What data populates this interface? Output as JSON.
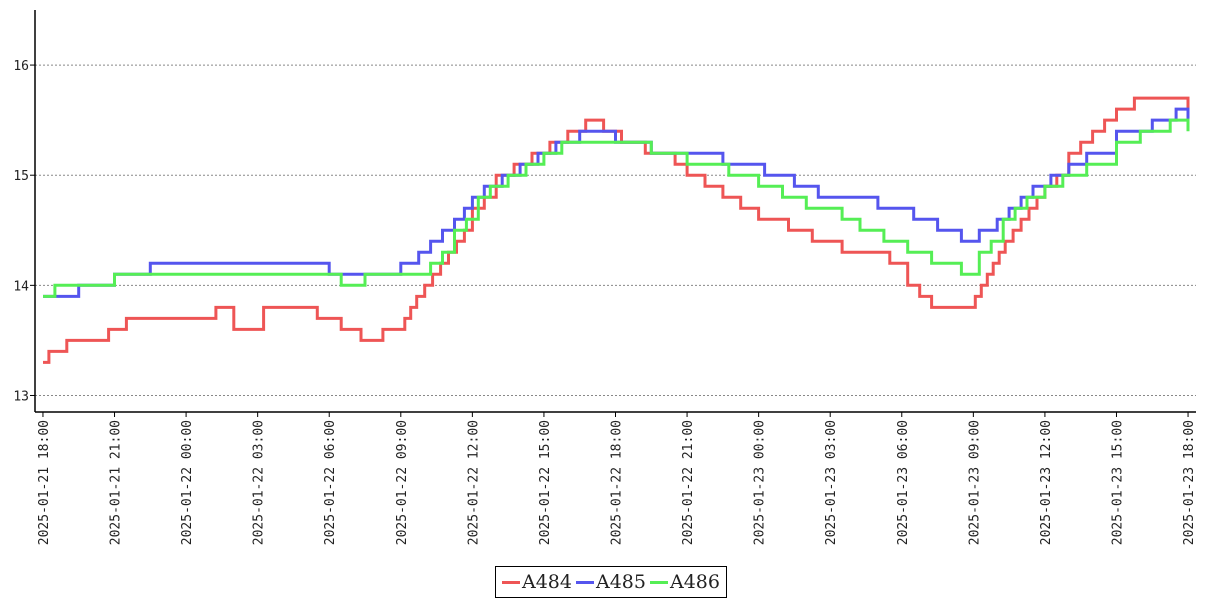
{
  "chart_data": {
    "type": "line",
    "title": "",
    "xlabel": "",
    "ylabel": "",
    "ylim": [
      12.85,
      16.5
    ],
    "xlim": [
      "2025-01-21 17:40",
      "2025-01-23 18:20"
    ],
    "y_ticks": [
      13,
      14,
      15,
      16
    ],
    "x_ticks": [
      "2025-01-21 18:00",
      "2025-01-21 21:00",
      "2025-01-22 00:00",
      "2025-01-22 03:00",
      "2025-01-22 06:00",
      "2025-01-22 09:00",
      "2025-01-22 12:00",
      "2025-01-22 15:00",
      "2025-01-22 18:00",
      "2025-01-22 21:00",
      "2025-01-23 00:00",
      "2025-01-23 03:00",
      "2025-01-23 06:00",
      "2025-01-23 09:00",
      "2025-01-23 12:00",
      "2025-01-23 15:00",
      "2025-01-23 18:00"
    ],
    "grid": {
      "y": true,
      "x": false,
      "style": "dotted"
    },
    "legend_placement": "bottom-center",
    "series": [
      {
        "name": "A484",
        "color": "#ee5555",
        "x": [
          "2025-01-21 18:00",
          "2025-01-21 18:15",
          "2025-01-21 18:30",
          "2025-01-21 19:00",
          "2025-01-21 19:45",
          "2025-01-21 20:45",
          "2025-01-21 21:30",
          "2025-01-21 22:00",
          "2025-01-22 01:00",
          "2025-01-22 01:15",
          "2025-01-22 02:00",
          "2025-01-22 03:15",
          "2025-01-22 05:30",
          "2025-01-22 06:30",
          "2025-01-22 07:20",
          "2025-01-22 08:15",
          "2025-01-22 08:40",
          "2025-01-22 09:10",
          "2025-01-22 09:25",
          "2025-01-22 09:40",
          "2025-01-22 10:00",
          "2025-01-22 10:20",
          "2025-01-22 10:40",
          "2025-01-22 11:00",
          "2025-01-22 11:20",
          "2025-01-22 11:40",
          "2025-01-22 12:00",
          "2025-01-22 12:30",
          "2025-01-22 13:00",
          "2025-01-22 13:45",
          "2025-01-22 14:30",
          "2025-01-22 15:15",
          "2025-01-22 16:00",
          "2025-01-22 16:45",
          "2025-01-22 17:30",
          "2025-01-22 18:15",
          "2025-01-22 19:15",
          "2025-01-22 20:30",
          "2025-01-22 21:00",
          "2025-01-22 21:45",
          "2025-01-22 22:30",
          "2025-01-22 23:15",
          "2025-01-23 00:00",
          "2025-01-23 01:15",
          "2025-01-23 02:15",
          "2025-01-23 03:30",
          "2025-01-23 05:30",
          "2025-01-23 06:15",
          "2025-01-23 06:45",
          "2025-01-23 07:15",
          "2025-01-23 08:45",
          "2025-01-23 09:05",
          "2025-01-23 09:20",
          "2025-01-23 09:35",
          "2025-01-23 09:50",
          "2025-01-23 10:05",
          "2025-01-23 10:20",
          "2025-01-23 10:40",
          "2025-01-23 11:00",
          "2025-01-23 11:20",
          "2025-01-23 11:40",
          "2025-01-23 12:00",
          "2025-01-23 12:30",
          "2025-01-23 13:00",
          "2025-01-23 13:30",
          "2025-01-23 14:00",
          "2025-01-23 14:30",
          "2025-01-23 15:00",
          "2025-01-23 15:45",
          "2025-01-23 17:45",
          "2025-01-23 18:00"
        ],
        "y": [
          13.3,
          13.4,
          13.4,
          13.5,
          13.5,
          13.6,
          13.7,
          13.7,
          13.7,
          13.8,
          13.6,
          13.8,
          13.7,
          13.6,
          13.5,
          13.6,
          13.6,
          13.7,
          13.8,
          13.9,
          14.0,
          14.1,
          14.2,
          14.3,
          14.4,
          14.5,
          14.7,
          14.8,
          15.0,
          15.1,
          15.2,
          15.3,
          15.4,
          15.5,
          15.4,
          15.3,
          15.2,
          15.1,
          15.0,
          14.9,
          14.8,
          14.7,
          14.6,
          14.5,
          14.4,
          14.3,
          14.2,
          14.0,
          13.9,
          13.8,
          13.8,
          13.9,
          14.0,
          14.1,
          14.2,
          14.3,
          14.4,
          14.5,
          14.6,
          14.7,
          14.8,
          14.9,
          15.0,
          15.2,
          15.3,
          15.4,
          15.5,
          15.6,
          15.7,
          15.7,
          15.6
        ]
      },
      {
        "name": "A485",
        "color": "#5555ee",
        "x": [
          "2025-01-21 18:00",
          "2025-01-21 18:15",
          "2025-01-21 19:30",
          "2025-01-21 20:00",
          "2025-01-21 21:00",
          "2025-01-21 22:30",
          "2025-01-22 05:00",
          "2025-01-22 06:00",
          "2025-01-22 07:30",
          "2025-01-22 09:00",
          "2025-01-22 09:45",
          "2025-01-22 10:15",
          "2025-01-22 10:45",
          "2025-01-22 11:15",
          "2025-01-22 11:40",
          "2025-01-22 12:00",
          "2025-01-22 12:30",
          "2025-01-22 13:15",
          "2025-01-22 14:00",
          "2025-01-22 14:45",
          "2025-01-22 15:30",
          "2025-01-22 16:30",
          "2025-01-22 18:00",
          "2025-01-22 19:30",
          "2025-01-22 20:30",
          "2025-01-22 22:30",
          "2025-01-23 00:15",
          "2025-01-23 01:30",
          "2025-01-23 02:30",
          "2025-01-23 03:30",
          "2025-01-23 05:00",
          "2025-01-23 06:30",
          "2025-01-23 07:30",
          "2025-01-23 08:30",
          "2025-01-23 09:15",
          "2025-01-23 10:00",
          "2025-01-23 10:30",
          "2025-01-23 11:00",
          "2025-01-23 11:30",
          "2025-01-23 12:15",
          "2025-01-23 13:00",
          "2025-01-23 13:45",
          "2025-01-23 15:00",
          "2025-01-23 16:30",
          "2025-01-23 17:30",
          "2025-01-23 18:00"
        ],
        "y": [
          13.9,
          13.9,
          14.0,
          14.0,
          14.1,
          14.2,
          14.2,
          14.1,
          14.1,
          14.2,
          14.3,
          14.4,
          14.5,
          14.6,
          14.7,
          14.8,
          14.9,
          15.0,
          15.1,
          15.2,
          15.3,
          15.4,
          15.3,
          15.2,
          15.2,
          15.1,
          15.0,
          14.9,
          14.8,
          14.8,
          14.7,
          14.6,
          14.5,
          14.4,
          14.5,
          14.6,
          14.7,
          14.8,
          14.9,
          15.0,
          15.1,
          15.2,
          15.4,
          15.5,
          15.6,
          15.5
        ]
      },
      {
        "name": "A486",
        "color": "#55ee55",
        "x": [
          "2025-01-21 18:00",
          "2025-01-21 18:30",
          "2025-01-21 19:30",
          "2025-01-21 20:00",
          "2025-01-21 21:00",
          "2025-01-21 21:30",
          "2025-01-22 05:30",
          "2025-01-22 06:30",
          "2025-01-22 07:30",
          "2025-01-22 09:30",
          "2025-01-22 10:15",
          "2025-01-22 10:45",
          "2025-01-22 11:15",
          "2025-01-22 11:45",
          "2025-01-22 12:15",
          "2025-01-22 12:45",
          "2025-01-22 13:30",
          "2025-01-22 14:15",
          "2025-01-22 15:00",
          "2025-01-22 15:45",
          "2025-01-22 17:00",
          "2025-01-22 18:30",
          "2025-01-22 19:30",
          "2025-01-22 21:00",
          "2025-01-22 22:45",
          "2025-01-23 00:00",
          "2025-01-23 01:00",
          "2025-01-23 02:00",
          "2025-01-23 03:30",
          "2025-01-23 04:15",
          "2025-01-23 05:15",
          "2025-01-23 06:15",
          "2025-01-23 07:15",
          "2025-01-23 08:30",
          "2025-01-23 09:15",
          "2025-01-23 09:45",
          "2025-01-23 10:15",
          "2025-01-23 10:45",
          "2025-01-23 11:15",
          "2025-01-23 12:00",
          "2025-01-23 12:45",
          "2025-01-23 13:45",
          "2025-01-23 15:00",
          "2025-01-23 16:00",
          "2025-01-23 17:15",
          "2025-01-23 18:00"
        ],
        "y": [
          13.9,
          14.0,
          14.0,
          14.0,
          14.1,
          14.1,
          14.1,
          14.0,
          14.1,
          14.1,
          14.2,
          14.3,
          14.5,
          14.6,
          14.8,
          14.9,
          15.0,
          15.1,
          15.2,
          15.3,
          15.3,
          15.3,
          15.2,
          15.1,
          15.0,
          14.9,
          14.8,
          14.7,
          14.6,
          14.5,
          14.4,
          14.3,
          14.2,
          14.1,
          14.3,
          14.4,
          14.6,
          14.7,
          14.8,
          14.9,
          15.0,
          15.1,
          15.3,
          15.4,
          15.5,
          15.4
        ]
      }
    ]
  }
}
